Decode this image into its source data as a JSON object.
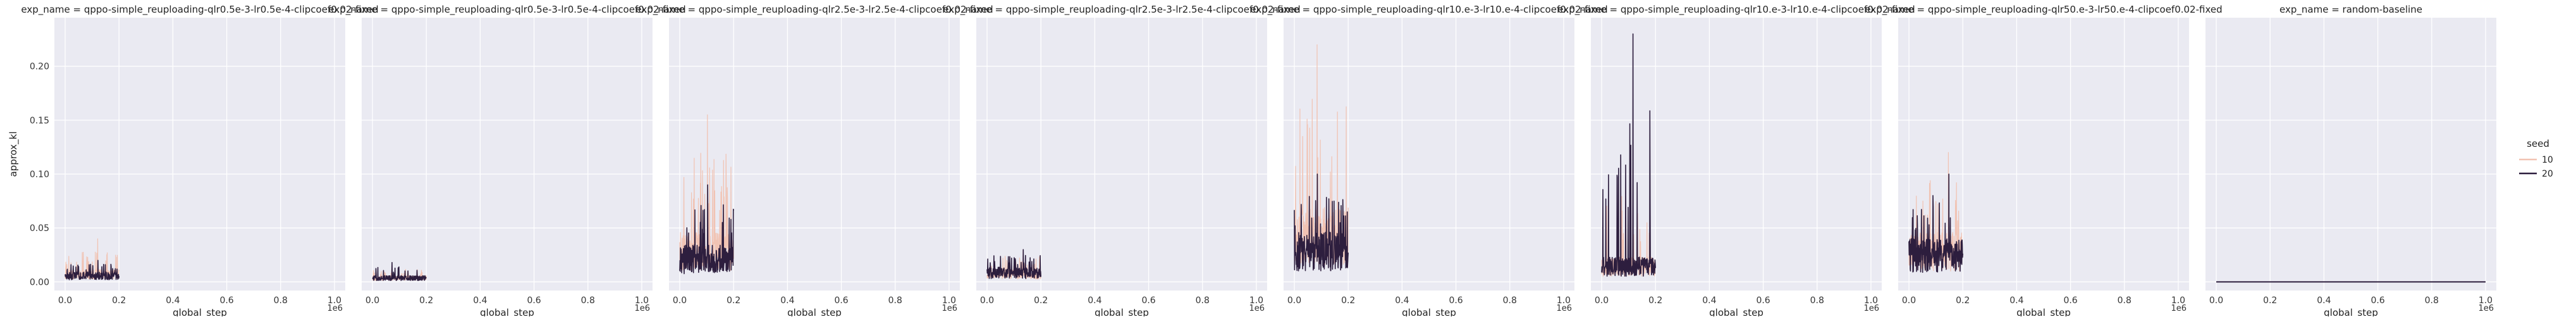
{
  "figure": {
    "y_axis_label": "approx_kl",
    "x_axis_label": "global_step",
    "x_offset_text": "1e6",
    "y_ticks": [
      "0.00",
      "0.05",
      "0.10",
      "0.15",
      "0.20"
    ],
    "x_ticks": [
      "0.0",
      "0.2",
      "0.4",
      "0.6",
      "0.8",
      "1.0"
    ]
  },
  "legend": {
    "title": "seed",
    "entries": [
      {
        "label": "10",
        "color": "#f1c3b3"
      },
      {
        "label": "20",
        "color": "#2d1e3e"
      }
    ]
  },
  "chart_data": [
    {
      "type": "line",
      "title": "exp_name = qppo-simple_reuploading-qlr0.5e-3-lr0.5e-4-clipcoef0.02-fixed",
      "xlabel": "global_step",
      "ylabel": "approx_kl",
      "xlim": [
        0,
        1000000
      ],
      "ylim": [
        0,
        0.24
      ],
      "x_range": [
        0,
        200000
      ],
      "grid": true,
      "series": [
        {
          "name": "10",
          "max": 0.04,
          "typical": 0.01
        },
        {
          "name": "20",
          "max": 0.02,
          "typical": 0.008
        }
      ]
    },
    {
      "type": "line",
      "title": "exp_name = qppo-simple_reuploading-qlr0.5e-3-lr0.5e-4-clipcoef0.02-fixed",
      "xlabel": "global_step",
      "ylabel": "approx_kl",
      "xlim": [
        0,
        1000000
      ],
      "ylim": [
        0,
        0.24
      ],
      "x_range": [
        0,
        200000
      ],
      "grid": true,
      "series": [
        {
          "name": "10",
          "max": 0.015,
          "typical": 0.005
        },
        {
          "name": "20",
          "max": 0.018,
          "typical": 0.005
        }
      ]
    },
    {
      "type": "line",
      "title": "exp_name = qppo-simple_reuploading-qlr2.5e-3-lr2.5e-4-clipcoef0.02-fixed",
      "xlabel": "global_step",
      "ylabel": "approx_kl",
      "xlim": [
        0,
        1000000
      ],
      "ylim": [
        0,
        0.24
      ],
      "x_range": [
        0,
        200000
      ],
      "grid": true,
      "series": [
        {
          "name": "10",
          "max": 0.155,
          "typical": 0.04
        },
        {
          "name": "20",
          "max": 0.09,
          "typical": 0.03
        }
      ]
    },
    {
      "type": "line",
      "title": "exp_name = qppo-simple_reuploading-qlr2.5e-3-lr2.5e-4-clipcoef0.02-fixed",
      "xlabel": "global_step",
      "ylabel": "approx_kl",
      "xlim": [
        0,
        1000000
      ],
      "ylim": [
        0,
        0.24
      ],
      "x_range": [
        0,
        200000
      ],
      "grid": true,
      "series": [
        {
          "name": "10",
          "max": 0.03,
          "typical": 0.01
        },
        {
          "name": "20",
          "max": 0.03,
          "typical": 0.012
        }
      ]
    },
    {
      "type": "line",
      "title": "exp_name = qppo-simple_reuploading-qlr10.e-3-lr10.e-4-clipcoef0.02-fixed",
      "xlabel": "global_step",
      "ylabel": "approx_kl",
      "xlim": [
        0,
        1000000
      ],
      "ylim": [
        0,
        0.24
      ],
      "x_range": [
        0,
        200000
      ],
      "grid": true,
      "series": [
        {
          "name": "10",
          "max": 0.22,
          "typical": 0.06
        },
        {
          "name": "20",
          "max": 0.1,
          "typical": 0.04
        }
      ]
    },
    {
      "type": "line",
      "title": "exp_name = qppo-simple_reuploading-qlr10.e-3-lr10.e-4-clipcoef0.02-fixed",
      "xlabel": "global_step",
      "ylabel": "approx_kl",
      "xlim": [
        0,
        1000000
      ],
      "ylim": [
        0,
        0.24
      ],
      "x_range": [
        0,
        200000
      ],
      "grid": true,
      "series": [
        {
          "name": "10",
          "max": 0.105,
          "typical": 0.02
        },
        {
          "name": "20",
          "max": 0.23,
          "typical": 0.02
        }
      ]
    },
    {
      "type": "line",
      "title": "exp_name = qppo-simple_reuploading-qlr50.e-3-lr50.e-4-clipcoef0.02-fixed",
      "xlabel": "global_step",
      "ylabel": "approx_kl",
      "xlim": [
        0,
        1000000
      ],
      "ylim": [
        0,
        0.24
      ],
      "x_range": [
        0,
        200000
      ],
      "grid": true,
      "series": [
        {
          "name": "10",
          "max": 0.12,
          "typical": 0.04
        },
        {
          "name": "20",
          "max": 0.1,
          "typical": 0.035
        }
      ]
    },
    {
      "type": "line",
      "title": "exp_name = random-baseline",
      "xlabel": "global_step",
      "ylabel": "approx_kl",
      "xlim": [
        0,
        1000000
      ],
      "ylim": [
        0,
        0.24
      ],
      "x_range": [
        0,
        1000000
      ],
      "grid": true,
      "series": [
        {
          "name": "20",
          "max": 0.0,
          "typical": 0.0
        }
      ]
    }
  ]
}
